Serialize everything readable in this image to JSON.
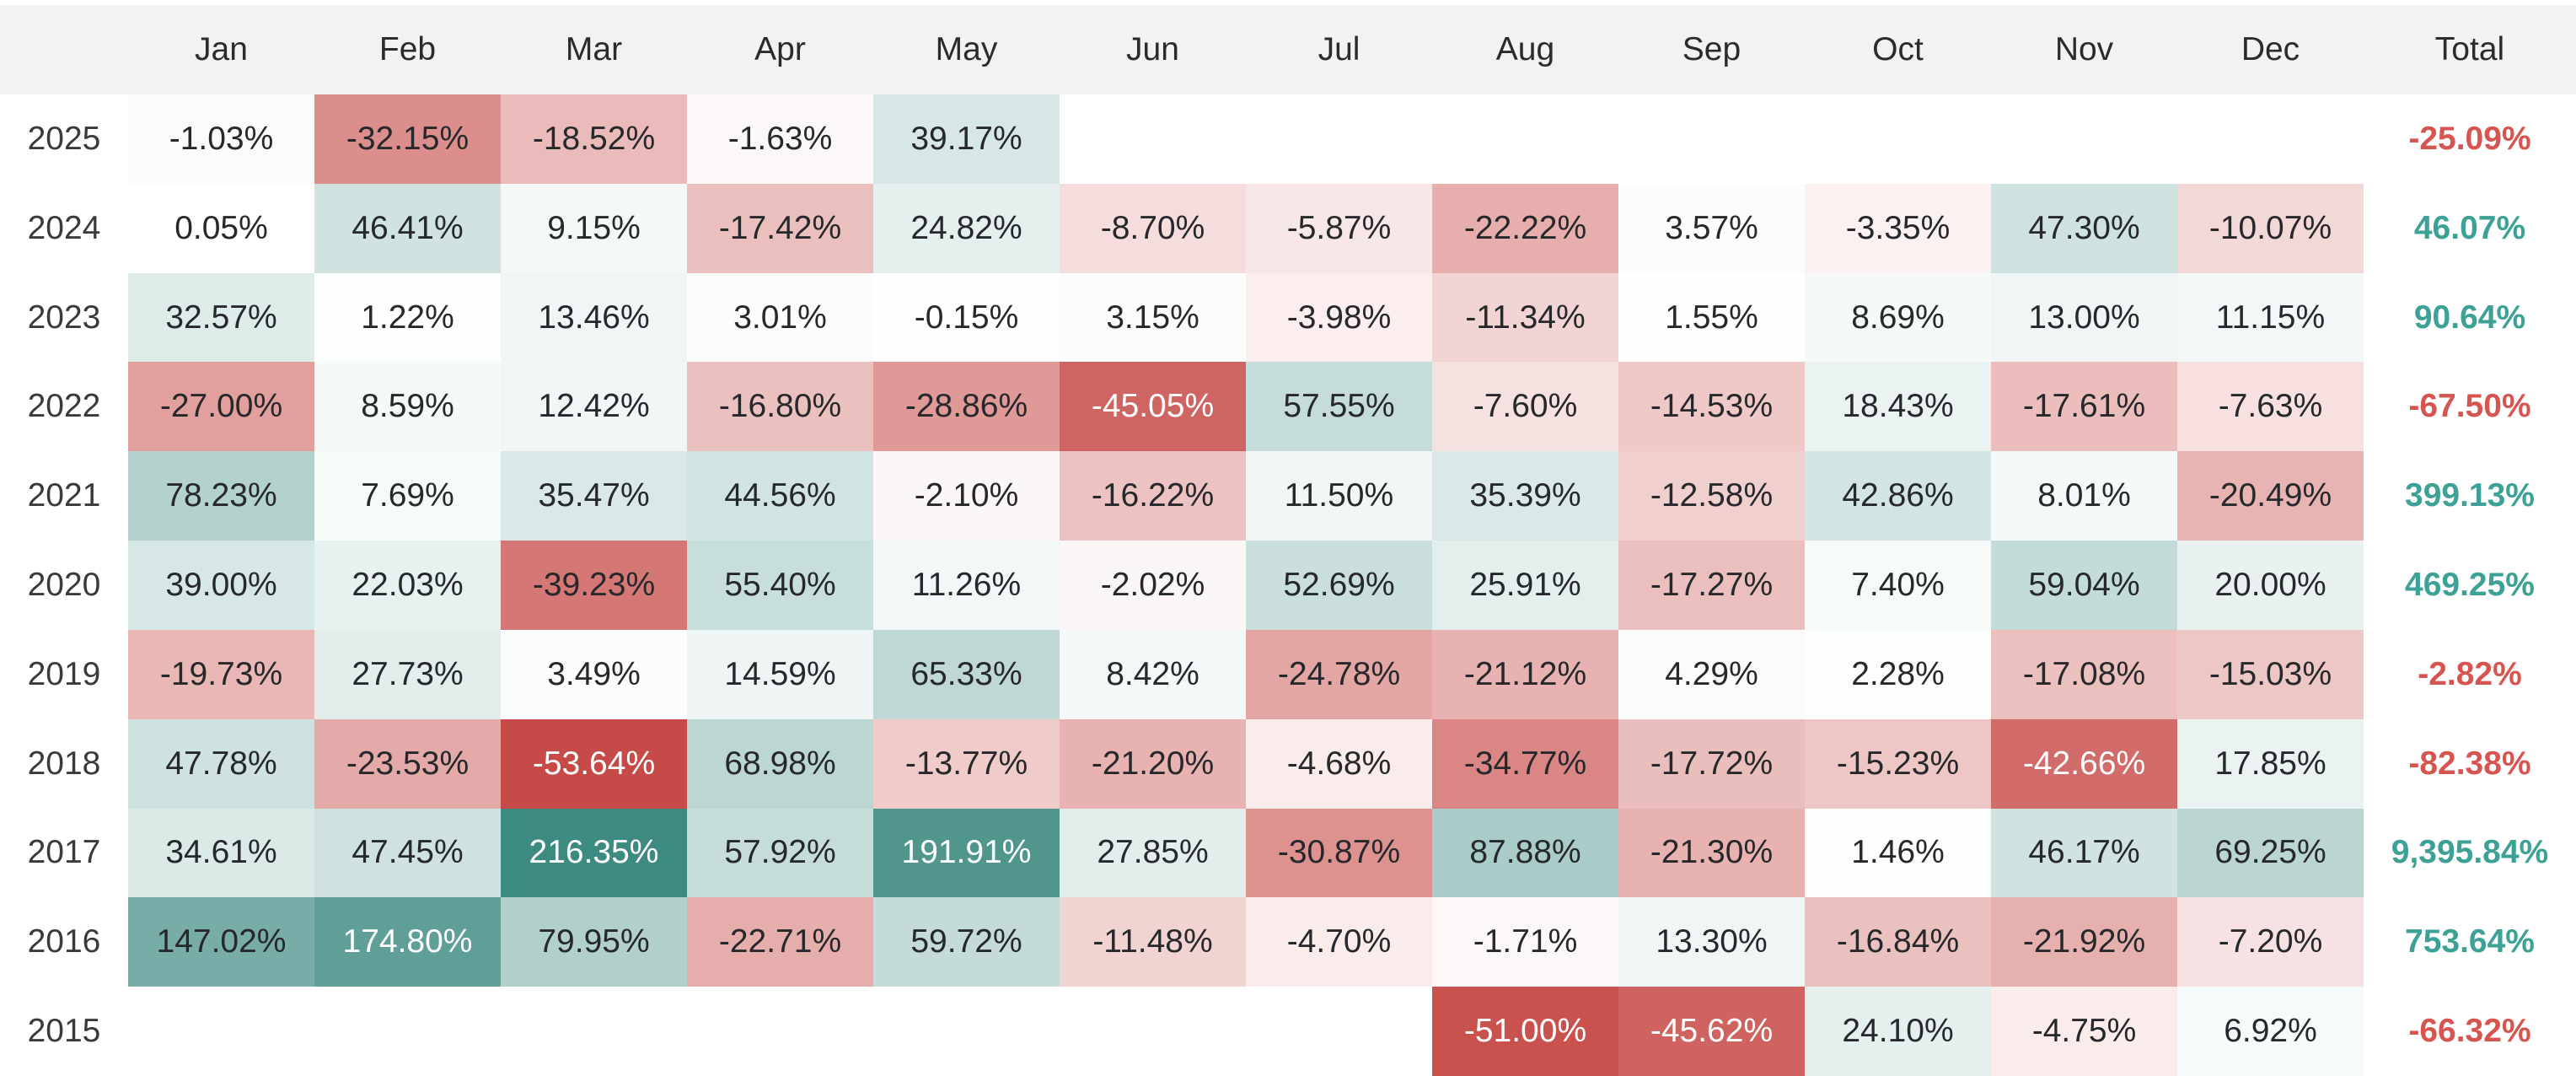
{
  "colors": {
    "page_bg": "#ffffff",
    "header_bg": "#f1f2f4",
    "header_text": "#2b2b2e",
    "year_text": "#3a3a3d",
    "cell_text_dark": "#26282b",
    "cell_text_light": "#ffffff",
    "total_positive": "#3da295",
    "total_negative": "#d65550",
    "scale_positive_end": "#3d8a80",
    "scale_negative_end": "#c64a47"
  },
  "chart_data": {
    "type": "heatmap",
    "columns": [
      "Jan",
      "Feb",
      "Mar",
      "Apr",
      "May",
      "Jun",
      "Jul",
      "Aug",
      "Sep",
      "Oct",
      "Nov",
      "Dec"
    ],
    "total_label": "Total",
    "value_suffix": "%",
    "color_scale": {
      "positive_max": 216.35,
      "negative_abs_max": 53.64,
      "white_text_threshold": 0.75
    },
    "rows": [
      {
        "year": "2025",
        "values": [
          -1.03,
          -32.15,
          -18.52,
          -1.63,
          39.17,
          null,
          null,
          null,
          null,
          null,
          null,
          null
        ],
        "total": "-25.09%"
      },
      {
        "year": "2024",
        "values": [
          0.05,
          46.41,
          9.15,
          -17.42,
          24.82,
          -8.7,
          -5.87,
          -22.22,
          3.57,
          -3.35,
          47.3,
          -10.07
        ],
        "total": "46.07%"
      },
      {
        "year": "2023",
        "values": [
          32.57,
          1.22,
          13.46,
          3.01,
          -0.15,
          3.15,
          -3.98,
          -11.34,
          1.55,
          8.69,
          13.0,
          11.15
        ],
        "total": "90.64%"
      },
      {
        "year": "2022",
        "values": [
          -27.0,
          8.59,
          12.42,
          -16.8,
          -28.86,
          -45.05,
          57.55,
          -7.6,
          -14.53,
          18.43,
          -17.61,
          -7.63
        ],
        "total": "-67.50%"
      },
      {
        "year": "2021",
        "values": [
          78.23,
          7.69,
          35.47,
          44.56,
          -2.1,
          -16.22,
          11.5,
          35.39,
          -12.58,
          42.86,
          8.01,
          -20.49
        ],
        "total": "399.13%"
      },
      {
        "year": "2020",
        "values": [
          39.0,
          22.03,
          -39.23,
          55.4,
          11.26,
          -2.02,
          52.69,
          25.91,
          -17.27,
          7.4,
          59.04,
          20.0
        ],
        "total": "469.25%"
      },
      {
        "year": "2019",
        "values": [
          -19.73,
          27.73,
          3.49,
          14.59,
          65.33,
          8.42,
          -24.78,
          -21.12,
          4.29,
          2.28,
          -17.08,
          -15.03
        ],
        "total": "-2.82%"
      },
      {
        "year": "2018",
        "values": [
          47.78,
          -23.53,
          -53.64,
          68.98,
          -13.77,
          -21.2,
          -4.68,
          -34.77,
          -17.72,
          -15.23,
          -42.66,
          17.85
        ],
        "total": "-82.38%"
      },
      {
        "year": "2017",
        "values": [
          34.61,
          47.45,
          216.35,
          57.92,
          191.91,
          27.85,
          -30.87,
          87.88,
          -21.3,
          1.46,
          46.17,
          69.25
        ],
        "total": "9,395.84%"
      },
      {
        "year": "2016",
        "values": [
          147.02,
          174.8,
          79.95,
          -22.71,
          59.72,
          -11.48,
          -4.7,
          -1.71,
          13.3,
          -16.84,
          -21.92,
          -7.2
        ],
        "total": "753.64%"
      },
      {
        "year": "2015",
        "values": [
          null,
          null,
          null,
          null,
          null,
          null,
          null,
          -51.0,
          -45.62,
          24.1,
          -4.75,
          6.92
        ],
        "total": "-66.32%"
      }
    ]
  },
  "layout": {
    "year_col_width": 152,
    "month_col_width": 221,
    "total_col_width": 252
  }
}
